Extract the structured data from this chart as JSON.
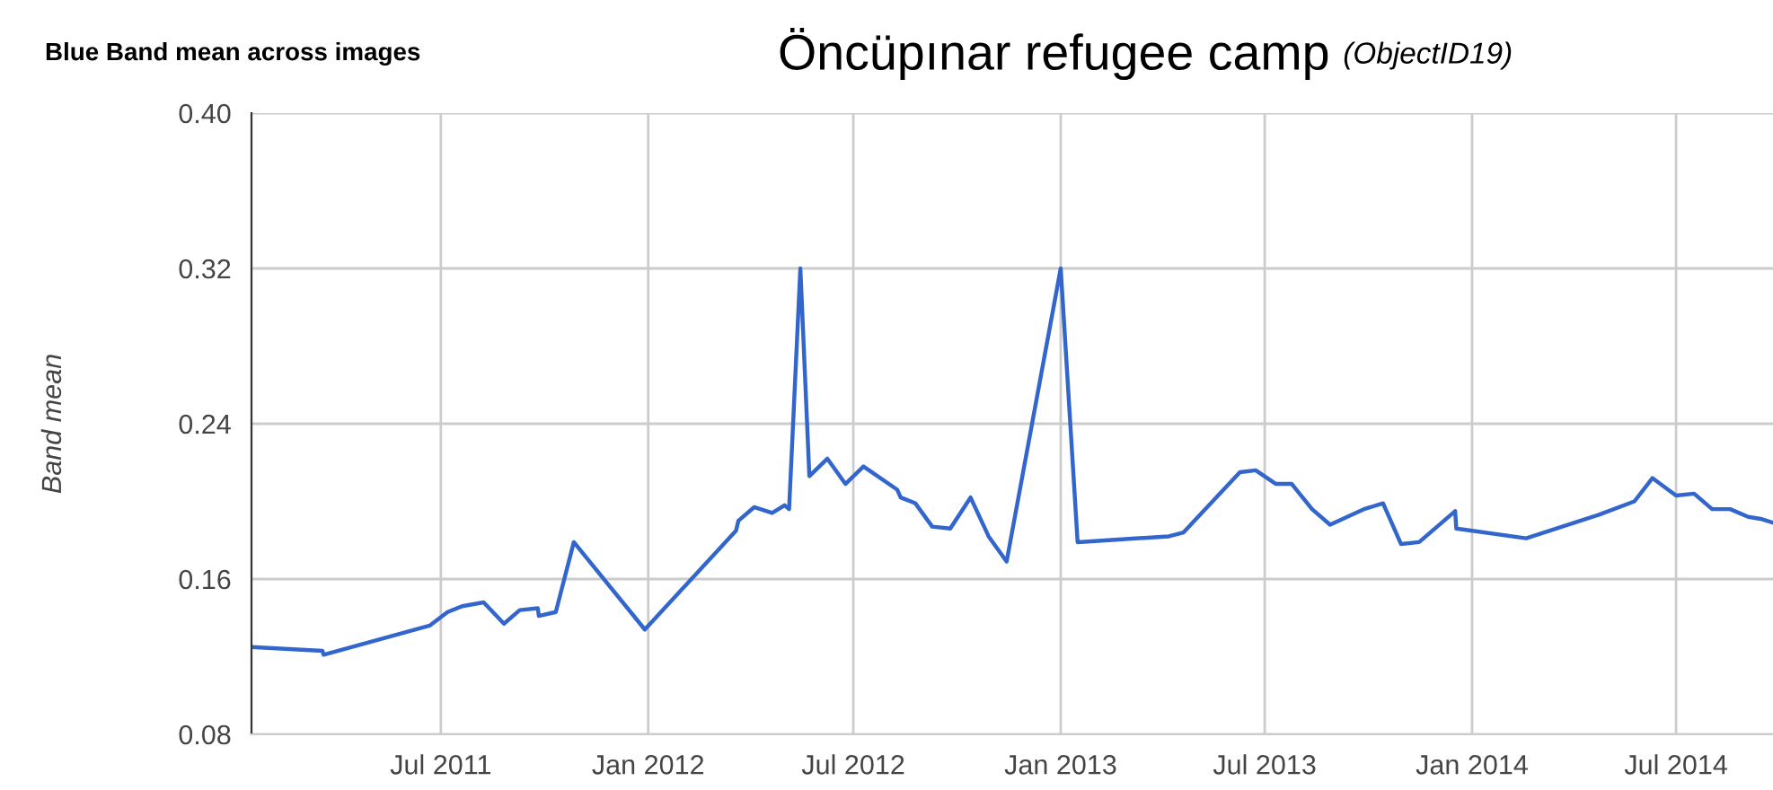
{
  "chart_data": {
    "type": "line",
    "title": "Öncüpınar refugee camp",
    "subtitle": "(ObjectID19)",
    "ylabel": "Band mean",
    "annotations": [
      "Blue Band mean across images"
    ],
    "x": [
      "2011-01-14",
      "2011-03-18",
      "2011-03-19",
      "2011-06-21",
      "2011-07-07",
      "2011-07-20",
      "2011-08-08",
      "2011-08-26",
      "2011-09-09",
      "2011-09-25",
      "2011-09-26",
      "2011-10-11",
      "2011-10-27",
      "2011-12-29",
      "2012-03-19",
      "2012-03-21",
      "2012-04-04",
      "2012-04-20",
      "2012-05-01",
      "2012-05-05",
      "2012-05-15",
      "2012-05-23",
      "2012-06-08",
      "2012-06-24",
      "2012-07-10",
      "2012-08-09",
      "2012-08-12",
      "2012-08-25",
      "2012-09-09",
      "2012-09-25",
      "2012-10-13",
      "2012-10-29",
      "2012-11-14",
      "2013-01-01",
      "2013-01-16",
      "2013-04-07",
      "2013-04-20",
      "2013-06-09",
      "2013-06-23",
      "2013-07-11",
      "2013-07-25",
      "2013-08-12",
      "2013-08-28",
      "2013-09-27",
      "2013-10-14",
      "2013-10-30",
      "2013-11-15",
      "2013-12-17",
      "2013-12-18",
      "2014-02-18",
      "2014-04-23",
      "2014-05-25",
      "2014-06-10",
      "2014-07-01",
      "2014-07-17",
      "2014-08-02",
      "2014-08-18",
      "2014-09-03",
      "2014-09-14",
      "2014-09-25"
    ],
    "series": [
      {
        "color": "#3366cc",
        "values": [
          0.125,
          0.123,
          0.121,
          0.136,
          0.143,
          0.146,
          0.148,
          0.137,
          0.144,
          0.145,
          0.141,
          0.143,
          0.179,
          0.134,
          0.185,
          0.19,
          0.197,
          0.194,
          0.198,
          0.196,
          0.32,
          0.213,
          0.222,
          0.209,
          0.218,
          0.206,
          0.202,
          0.199,
          0.187,
          0.186,
          0.202,
          0.182,
          0.169,
          0.32,
          0.179,
          0.182,
          0.184,
          0.215,
          0.216,
          0.209,
          0.209,
          0.196,
          0.188,
          0.196,
          0.199,
          0.178,
          0.179,
          0.195,
          0.186,
          0.181,
          0.193,
          0.2,
          0.212,
          0.203,
          0.204,
          0.196,
          0.196,
          0.192,
          0.191,
          0.189
        ]
      }
    ],
    "xlim": [
      "2011-01-14",
      "2014-09-25"
    ],
    "xticks": [
      {
        "value": "2011-07-01",
        "label": "Jul 2011"
      },
      {
        "value": "2012-01-01",
        "label": "Jan 2012"
      },
      {
        "value": "2012-07-01",
        "label": "Jul 2012"
      },
      {
        "value": "2013-01-01",
        "label": "Jan 2013"
      },
      {
        "value": "2013-07-01",
        "label": "Jul 2013"
      },
      {
        "value": "2014-01-01",
        "label": "Jan 2014"
      },
      {
        "value": "2014-07-01",
        "label": "Jul 2014"
      }
    ],
    "ylim": [
      0.08,
      0.4
    ],
    "yticks": [
      {
        "value": 0.08,
        "label": "0.08"
      },
      {
        "value": 0.16,
        "label": "0.16"
      },
      {
        "value": 0.24,
        "label": "0.24"
      },
      {
        "value": 0.32,
        "label": "0.32"
      },
      {
        "value": 0.4,
        "label": "0.40"
      }
    ],
    "grid": true,
    "legend": false,
    "marker": "none",
    "line_style": "solid"
  }
}
